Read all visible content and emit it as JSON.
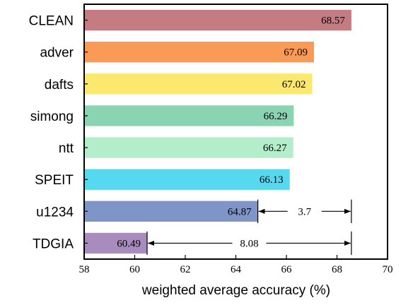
{
  "chart_data": {
    "type": "bar",
    "orientation": "horizontal",
    "categories": [
      "CLEAN",
      "adver",
      "dafts",
      "simong",
      "ntt",
      "SPEIT",
      "u1234",
      "TDGIA"
    ],
    "values": [
      68.57,
      67.09,
      67.02,
      66.29,
      66.27,
      66.13,
      64.87,
      60.49
    ],
    "value_labels": [
      "68.57",
      "67.09",
      "67.02",
      "66.29",
      "66.27",
      "66.13",
      "64.87",
      "60.49"
    ],
    "colors": [
      "#c57b82",
      "#f99b56",
      "#fbe86e",
      "#8bd4b3",
      "#b3edc9",
      "#56d9ef",
      "#7f95c8",
      "#a78cbd"
    ],
    "xlabel": "weighted average accuracy (%)",
    "ylabel": "",
    "xlim": [
      58,
      70
    ],
    "xticks": [
      58,
      60,
      62,
      64,
      66,
      68,
      70
    ],
    "grid": false,
    "annotations": [
      {
        "text": "3.7",
        "from": 64.87,
        "to": 68.57,
        "category": "u1234"
      },
      {
        "text": "8.08",
        "from": 60.49,
        "to": 68.57,
        "category": "TDGIA"
      }
    ]
  }
}
